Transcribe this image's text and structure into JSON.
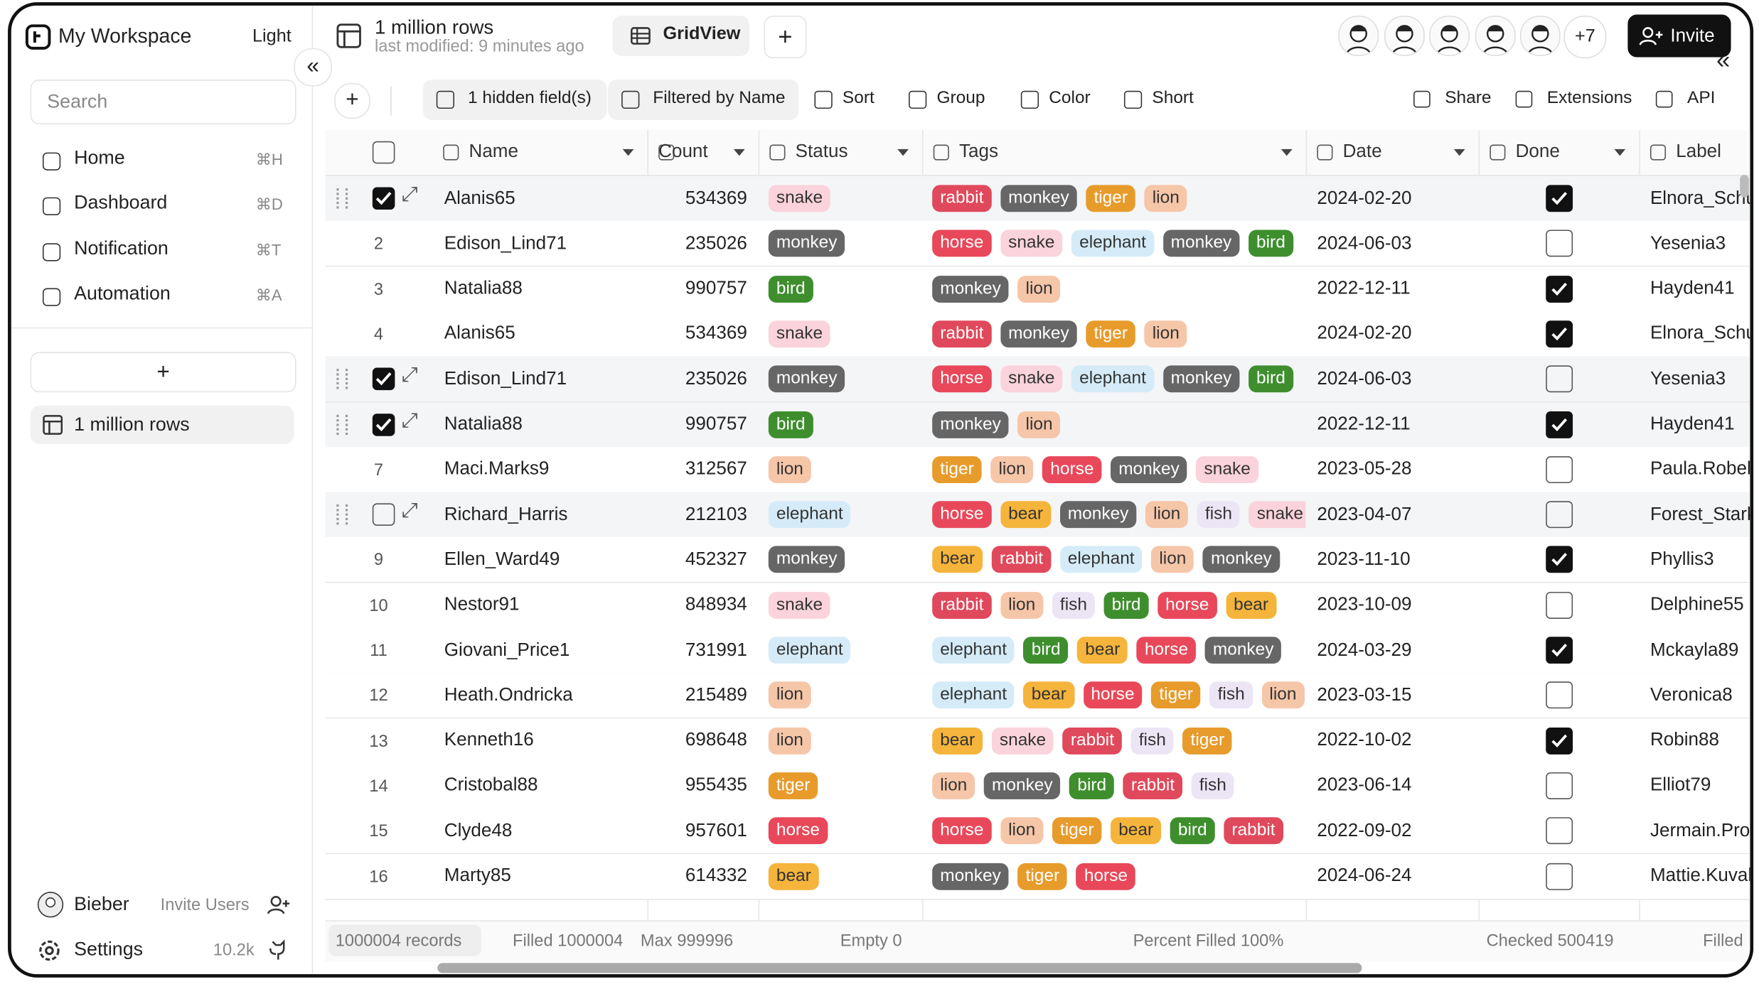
{
  "workspace": "My Workspace",
  "theme": "Light",
  "search_placeholder": "Search",
  "nav": [
    {
      "label": "Home",
      "key": "⌘H"
    },
    {
      "label": "Dashboard",
      "key": "⌘D"
    },
    {
      "label": "Notification",
      "key": "⌘T"
    },
    {
      "label": "Automation",
      "key": "⌘A"
    }
  ],
  "add_button": "+",
  "tables": [
    "1 million rows"
  ],
  "user": {
    "name": "Bieber",
    "invite": "Invite Users"
  },
  "settings": {
    "label": "Settings",
    "stars": "10.2k"
  },
  "header": {
    "title": "1 million rows",
    "subtitle": "last modified: 9 minutes ago",
    "view": "GridView",
    "add": "+",
    "more_users": "+7",
    "invite": "Invite"
  },
  "toolbar": {
    "add": "+",
    "items": [
      "1 hidden field(s)",
      "Filtered by Name",
      "Sort",
      "Group",
      "Color",
      "Short"
    ],
    "right": [
      "Share",
      "Extensions",
      "API"
    ]
  },
  "table": {
    "columns": [
      "Name",
      "Count",
      "Status",
      "Tags",
      "Date",
      "Done",
      "Label"
    ],
    "tag_styles": {
      "snake": [
        "#fbd3dc",
        "#333"
      ],
      "rabbit": [
        "#e0485b",
        "#fff"
      ],
      "monkey": [
        "#666666",
        "#fff"
      ],
      "tiger": [
        "#e79b2b",
        "#fff"
      ],
      "lion": [
        "#f6c6a8",
        "#333"
      ],
      "horse": [
        "#e8485a",
        "#fff"
      ],
      "elephant": [
        "#d5ecf8",
        "#333"
      ],
      "bird": [
        "#3e8e2e",
        "#fff"
      ],
      "bear": [
        "#f5b43b",
        "#333"
      ],
      "fish": [
        "#ece5f6",
        "#333"
      ]
    },
    "rows": [
      {
        "checked": true,
        "name": "Alanis65",
        "count": 534369,
        "status": "snake",
        "tags": [
          "rabbit",
          "monkey",
          "tiger",
          "lion"
        ],
        "date": "2024-02-20",
        "done": true,
        "label": "Elnora_Schup"
      },
      {
        "n": 2,
        "name": "Edison_Lind71",
        "count": 235026,
        "status": "monkey",
        "tags": [
          "horse",
          "snake",
          "elephant",
          "monkey",
          "bird"
        ],
        "date": "2024-06-03",
        "done": false,
        "label": "Yesenia3"
      },
      {
        "n": 3,
        "name": "Natalia88",
        "count": 990757,
        "status": "bird",
        "tags": [
          "monkey",
          "lion"
        ],
        "date": "2022-12-11",
        "done": true,
        "label": "Hayden41"
      },
      {
        "n": 4,
        "name": "Alanis65",
        "count": 534369,
        "status": "snake",
        "tags": [
          "rabbit",
          "monkey",
          "tiger",
          "lion"
        ],
        "date": "2024-02-20",
        "done": true,
        "label": "Elnora_Schup"
      },
      {
        "checked": true,
        "name": "Edison_Lind71",
        "count": 235026,
        "status": "monkey",
        "tags": [
          "horse",
          "snake",
          "elephant",
          "monkey",
          "bird"
        ],
        "date": "2024-06-03",
        "done": false,
        "label": "Yesenia3"
      },
      {
        "checked": true,
        "name": "Natalia88",
        "count": 990757,
        "status": "bird",
        "tags": [
          "monkey",
          "lion"
        ],
        "date": "2022-12-11",
        "done": true,
        "label": "Hayden41"
      },
      {
        "n": 7,
        "name": "Maci.Marks9",
        "count": 312567,
        "status": "lion",
        "tags": [
          "tiger",
          "lion",
          "horse",
          "monkey",
          "snake"
        ],
        "date": "2023-05-28",
        "done": false,
        "label": "Paula.Robel-"
      },
      {
        "checked": false,
        "name": "Richard_Harris",
        "count": 212103,
        "status": "elephant",
        "tags": [
          "horse",
          "bear",
          "monkey",
          "lion",
          "fish",
          "snake"
        ],
        "date": "2023-04-07",
        "done": false,
        "label": "Forest_Stark"
      },
      {
        "n": 9,
        "name": "Ellen_Ward49",
        "count": 452327,
        "status": "monkey",
        "tags": [
          "bear",
          "rabbit",
          "elephant",
          "lion",
          "monkey"
        ],
        "date": "2023-11-10",
        "done": true,
        "label": "Phyllis3"
      },
      {
        "n": 10,
        "name": "Nestor91",
        "count": 848934,
        "status": "snake",
        "tags": [
          "rabbit",
          "lion",
          "fish",
          "bird",
          "horse",
          "bear"
        ],
        "date": "2023-10-09",
        "done": false,
        "label": "Delphine55"
      },
      {
        "n": 11,
        "name": "Giovani_Price1",
        "count": 731991,
        "status": "elephant",
        "tags": [
          "elephant",
          "bird",
          "bear",
          "horse",
          "monkey"
        ],
        "date": "2024-03-29",
        "done": true,
        "label": "Mckayla89"
      },
      {
        "n": 12,
        "name": "Heath.Ondricka",
        "count": 215489,
        "status": "lion",
        "tags": [
          "elephant",
          "bear",
          "horse",
          "tiger",
          "fish",
          "lion"
        ],
        "date": "2023-03-15",
        "done": false,
        "label": "Veronica8"
      },
      {
        "n": 13,
        "name": "Kenneth16",
        "count": 698648,
        "status": "lion",
        "tags": [
          "bear",
          "snake",
          "rabbit",
          "fish",
          "tiger"
        ],
        "date": "2022-10-02",
        "done": true,
        "label": "Robin88"
      },
      {
        "n": 14,
        "name": "Cristobal88",
        "count": 955435,
        "status": "tiger",
        "tags": [
          "lion",
          "monkey",
          "bird",
          "rabbit",
          "fish"
        ],
        "date": "2023-06-14",
        "done": false,
        "label": "Elliot79"
      },
      {
        "n": 15,
        "name": "Clyde48",
        "count": 957601,
        "status": "horse",
        "tags": [
          "horse",
          "lion",
          "tiger",
          "bear",
          "bird",
          "rabbit"
        ],
        "date": "2022-09-02",
        "done": false,
        "label": "Jermain.Proh"
      },
      {
        "n": 16,
        "name": "Marty85",
        "count": 614332,
        "status": "bear",
        "tags": [
          "monkey",
          "tiger",
          "horse"
        ],
        "date": "2024-06-24",
        "done": false,
        "label": "Mattie.Kuvali"
      }
    ]
  },
  "footer": [
    "1000004 records",
    "Filled 1000004",
    "Max 999996",
    "Empty 0",
    "Percent Filled 100%",
    "Checked 500419",
    "Filled"
  ]
}
